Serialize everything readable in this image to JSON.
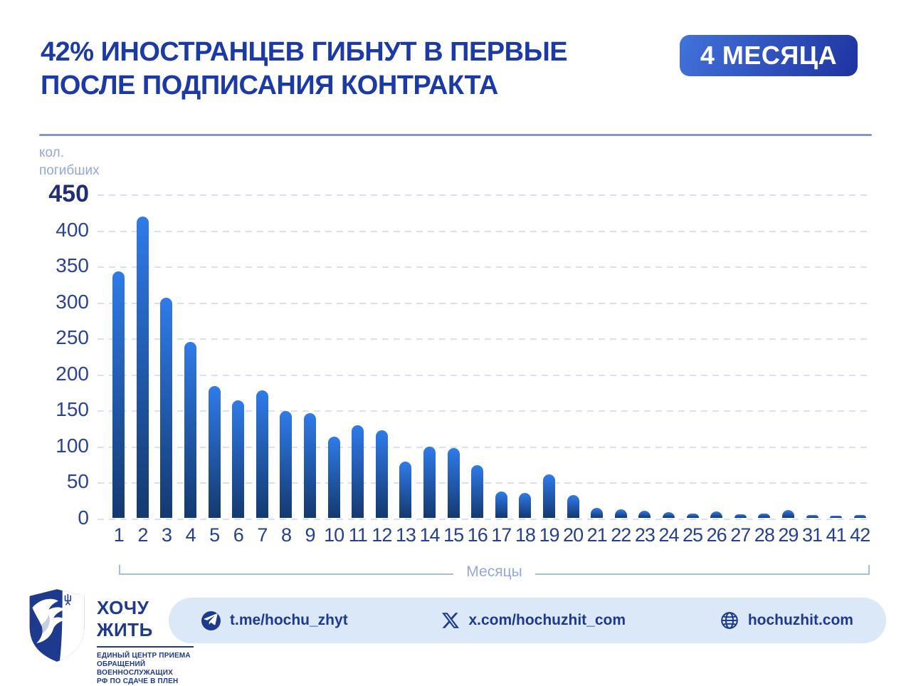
{
  "header": {
    "title_line1": "42% ИНОСТРАНЦЕВ ГИБНУТ В ПЕРВЫЕ",
    "title_line2": "ПОСЛЕ ПОДПИСАНИЯ КОНТРАКТА",
    "badge": "4 МЕСЯЦА"
  },
  "chart_data": {
    "type": "bar",
    "title": "42% иностранцев гибнут в первые 4 месяца после подписания контракта",
    "ylabel_line1": "кол.",
    "ylabel_line2": "погибших",
    "xlabel": "Месяцы",
    "ylim": [
      0,
      450
    ],
    "yticks": [
      450,
      400,
      350,
      300,
      250,
      200,
      150,
      100,
      50,
      0
    ],
    "grid": "horizontal-dashed",
    "legend": "none",
    "categories": [
      "1",
      "2",
      "3",
      "4",
      "5",
      "6",
      "7",
      "8",
      "9",
      "10",
      "11",
      "12",
      "13",
      "14",
      "15",
      "16",
      "17",
      "18",
      "19",
      "20",
      "21",
      "22",
      "23",
      "24",
      "25",
      "26",
      "27",
      "28",
      "29",
      "31",
      "41",
      "42"
    ],
    "values": [
      342,
      418,
      306,
      244,
      183,
      163,
      177,
      148,
      145,
      113,
      129,
      122,
      78,
      99,
      97,
      73,
      37,
      35,
      60,
      32,
      14,
      12,
      10,
      8,
      6,
      9,
      5,
      6,
      11,
      4,
      3,
      4
    ]
  },
  "footer": {
    "logo": {
      "name": "ХОЧУ ЖИТЬ",
      "sub_line1": "ЕДИНЫЙ ЦЕНТР ПРИЕМА",
      "sub_line2": "ОБРАЩЕНИЙ ВОЕННОСЛУЖАЩИХ",
      "sub_line3": "РФ ПО СДАЧЕ В ПЛЕН"
    },
    "links": {
      "telegram": "t.me/hochu_zhyt",
      "x": "x.com/hochuzhit_com",
      "web": "hochuzhit.com"
    }
  },
  "colors": {
    "title_navy": "#1C3AA6",
    "bar_top": "#2F7BE9",
    "bar_bottom": "#14396F",
    "grid": "#D8E0F2",
    "light_blue": "#93A7DE",
    "pill_bg": "#DBE8F8",
    "badge_from": "#4273DB",
    "badge_to": "#1E33A0",
    "footer_text": "#1D3A8F"
  }
}
